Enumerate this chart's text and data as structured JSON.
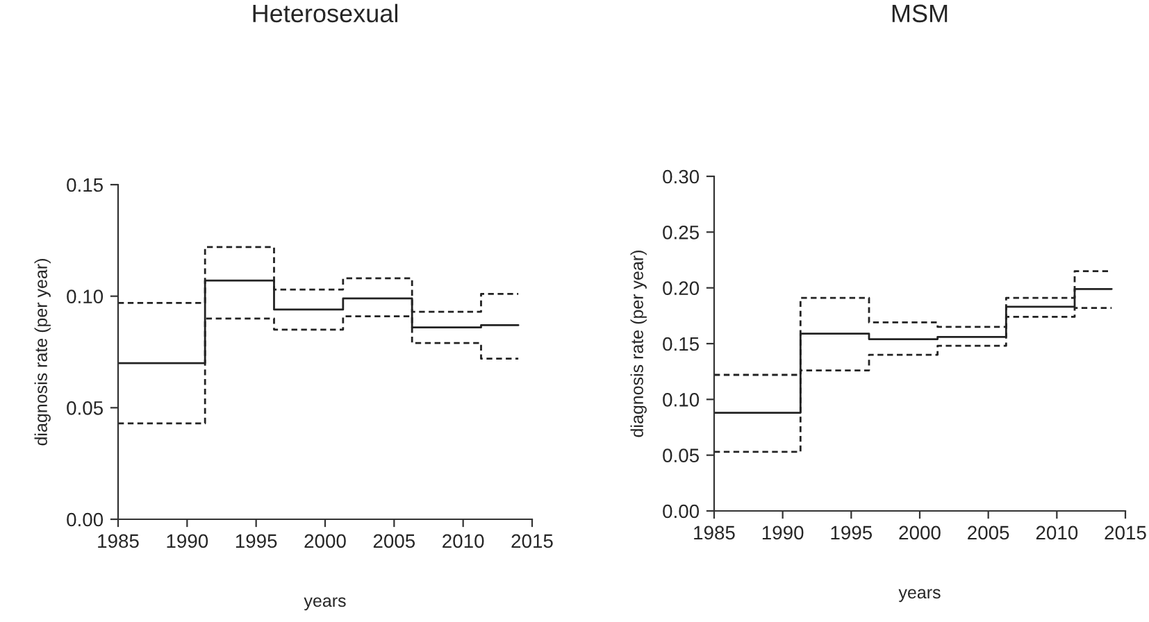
{
  "chart_data": [
    {
      "type": "step",
      "title": "Heterosexual",
      "xlabel": "years",
      "ylabel": "diagnosis rate (per year)",
      "xlim": [
        1985,
        2015
      ],
      "xticks": [
        1985,
        1990,
        1995,
        2000,
        2005,
        2010,
        2015
      ],
      "ylim": [
        0,
        0.15
      ],
      "yticks": [
        {
          "value": 0,
          "label": "0.00"
        },
        0.05,
        {
          "value": 0.1,
          "label": "0.10"
        },
        0.15
      ],
      "grid": false,
      "legend": false,
      "series": [
        {
          "color": "#222222",
          "line_style": "solid",
          "x": [
            1985,
            1991.3,
            1996.3,
            2001.3,
            2006.3,
            2011.3,
            2014
          ],
          "values": [
            0.07,
            0.107,
            0.094,
            0.099,
            0.086,
            0.087,
            0.087
          ]
        },
        {
          "color": "#222222",
          "line_style": "dashed",
          "x": [
            1985,
            1991.3,
            1996.3,
            2001.3,
            2006.3,
            2011.3,
            2014
          ],
          "values": [
            0.097,
            0.122,
            0.103,
            0.108,
            0.093,
            0.101,
            0.101
          ]
        },
        {
          "color": "#222222",
          "line_style": "dashed",
          "x": [
            1985,
            1991.3,
            1996.3,
            2001.3,
            2006.3,
            2011.3,
            2014
          ],
          "values": [
            0.043,
            0.09,
            0.085,
            0.091,
            0.079,
            0.072,
            0.072
          ]
        }
      ]
    },
    {
      "type": "step",
      "title": "MSM",
      "xlabel": "years",
      "ylabel": "diagnosis rate (per year)",
      "xlim": [
        1985,
        2015
      ],
      "xticks": [
        1985,
        1990,
        1995,
        2000,
        2005,
        2010,
        2015
      ],
      "ylim": [
        0,
        0.3
      ],
      "yticks": [
        {
          "value": 0,
          "label": "0.00"
        },
        0.05,
        {
          "value": 0.1,
          "label": "0.10"
        },
        0.15,
        {
          "value": 0.2,
          "label": "0.20"
        },
        0.25,
        {
          "value": 0.3,
          "label": "0.30"
        }
      ],
      "grid": false,
      "legend": false,
      "series": [
        {
          "color": "#222222",
          "line_style": "solid",
          "x": [
            1985,
            1991.3,
            1996.3,
            2001.3,
            2006.3,
            2011.3,
            2014
          ],
          "values": [
            0.088,
            0.159,
            0.154,
            0.156,
            0.183,
            0.199,
            0.199
          ]
        },
        {
          "color": "#222222",
          "line_style": "dashed",
          "x": [
            1985,
            1991.3,
            1996.3,
            2001.3,
            2006.3,
            2011.3,
            2014
          ],
          "values": [
            0.122,
            0.191,
            0.169,
            0.165,
            0.191,
            0.215,
            0.215
          ]
        },
        {
          "color": "#222222",
          "line_style": "dashed",
          "x": [
            1985,
            1991.3,
            1996.3,
            2001.3,
            2006.3,
            2011.3,
            2014
          ],
          "values": [
            0.053,
            0.126,
            0.14,
            0.148,
            0.174,
            0.182,
            0.182
          ]
        }
      ]
    }
  ]
}
